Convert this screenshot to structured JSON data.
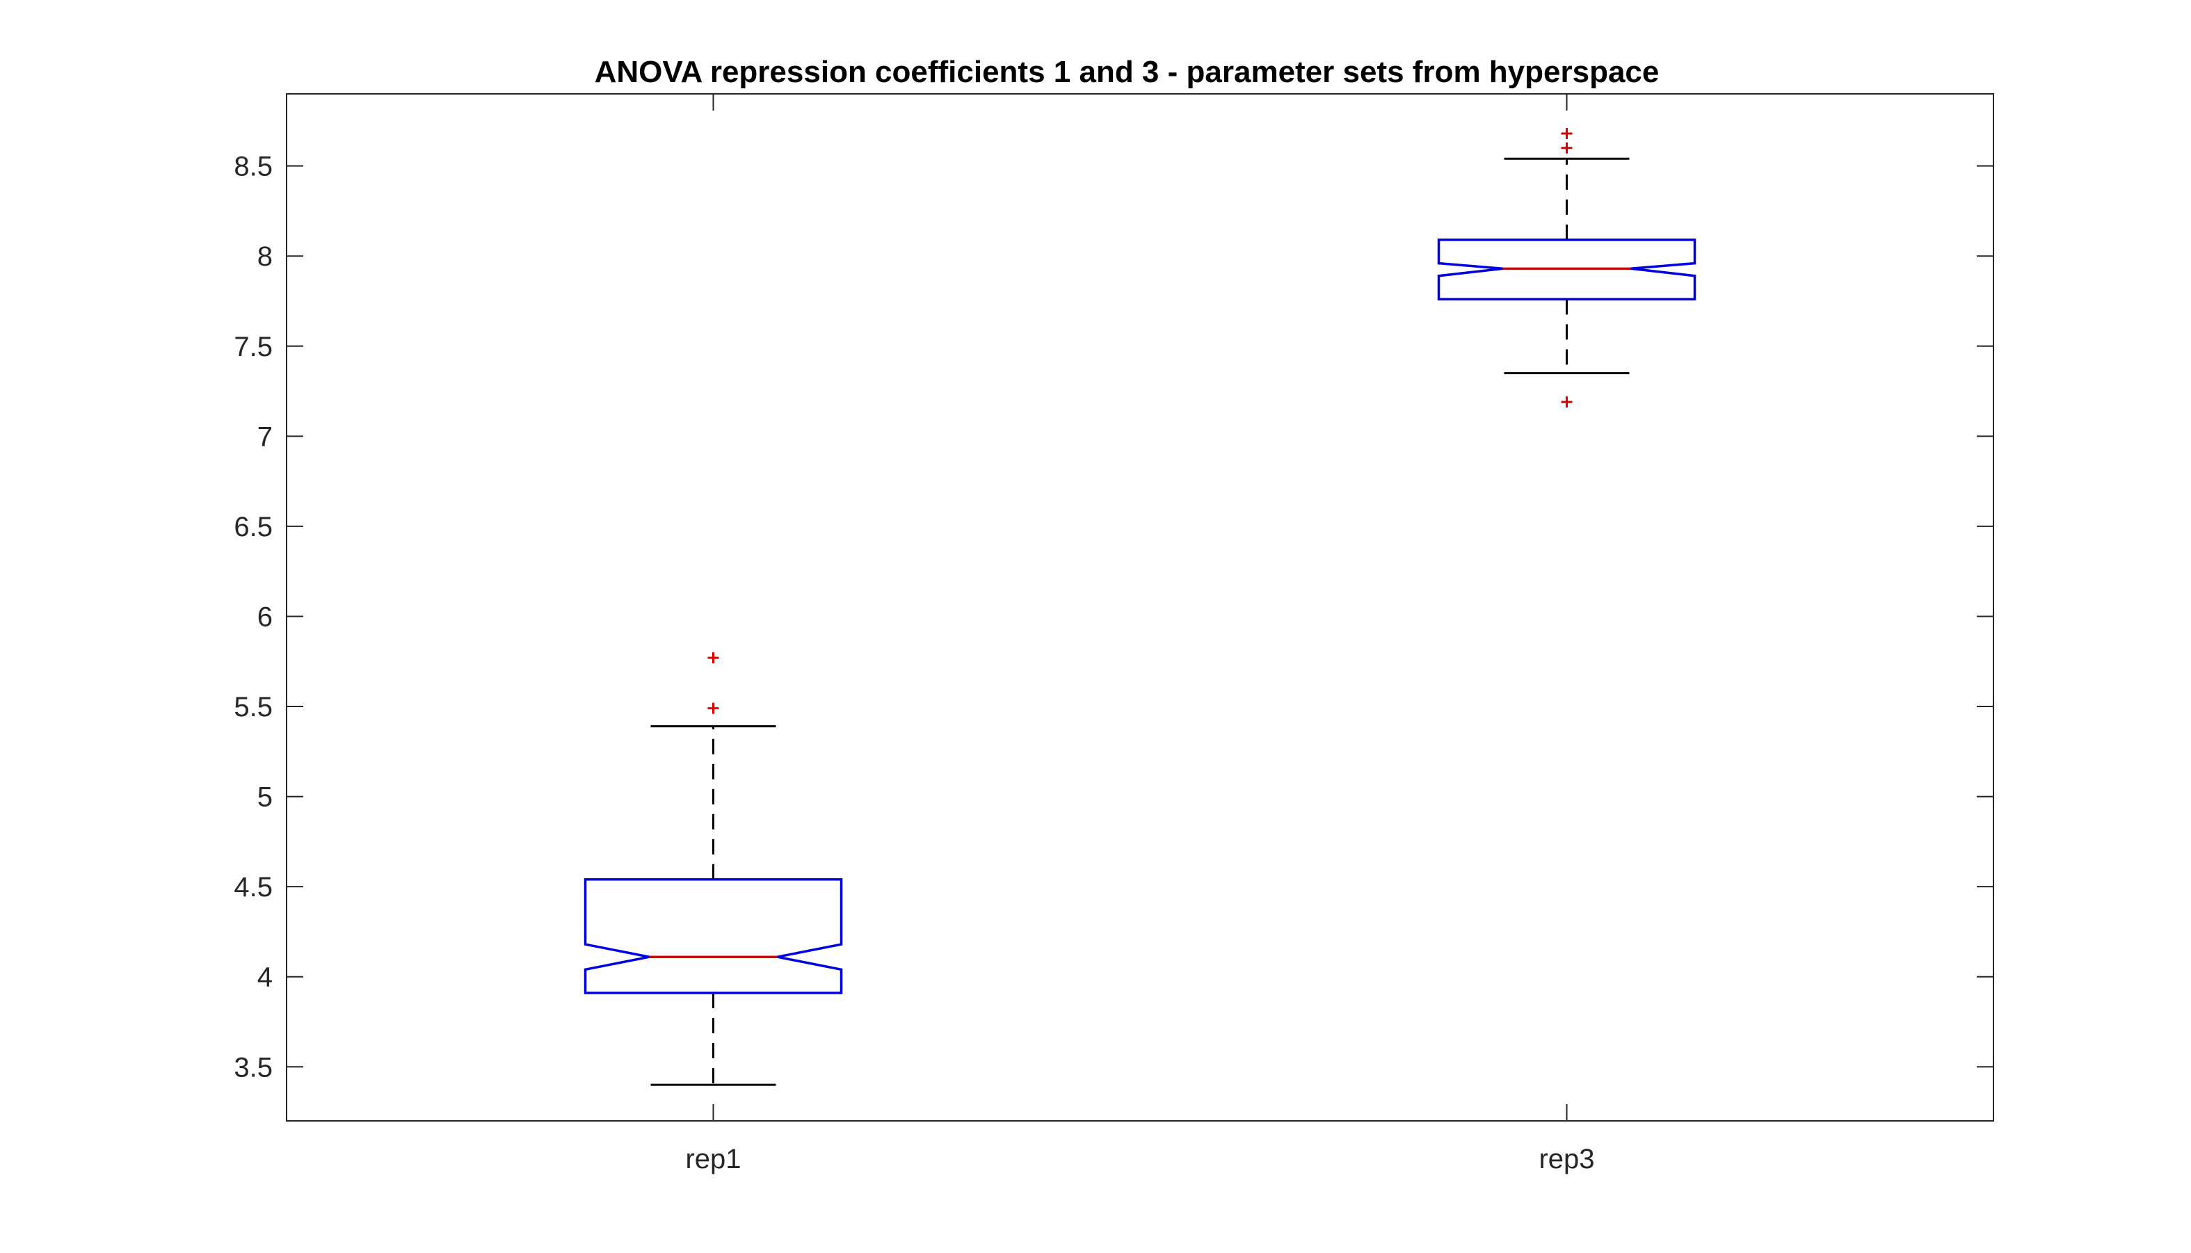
{
  "chart_data": {
    "type": "boxplot",
    "title": "ANOVA repression coefficients 1 and 3 - parameter sets from hyperspace",
    "xlabel": "",
    "ylabel": "",
    "categories": [
      "rep1",
      "rep3"
    ],
    "ylim": [
      3.2,
      8.9
    ],
    "yticks": [
      3.5,
      4,
      4.5,
      5,
      5.5,
      6,
      6.5,
      7,
      7.5,
      8,
      8.5
    ],
    "ytick_labels": [
      "3.5",
      "4",
      "4.5",
      "5",
      "5.5",
      "6",
      "6.5",
      "7",
      "7.5",
      "8",
      "8.5"
    ],
    "notched": true,
    "grid": false,
    "boxes": [
      {
        "category": "rep1",
        "whisker_low": 3.4,
        "q1": 3.91,
        "notch_low": 4.04,
        "median": 4.11,
        "notch_high": 4.18,
        "q3": 4.54,
        "whisker_high": 5.39,
        "outliers": [
          5.49,
          5.77
        ]
      },
      {
        "category": "rep3",
        "whisker_low": 7.35,
        "q1": 7.76,
        "notch_low": 7.89,
        "median": 7.93,
        "notch_high": 7.96,
        "q3": 8.09,
        "whisker_high": 8.54,
        "outliers": [
          7.19,
          8.6,
          8.68
        ]
      }
    ],
    "colors": {
      "box": "#0000e0",
      "median": "#e00000",
      "whisker": "#000000",
      "outlier": "#e00000",
      "axis": "#262626"
    }
  }
}
